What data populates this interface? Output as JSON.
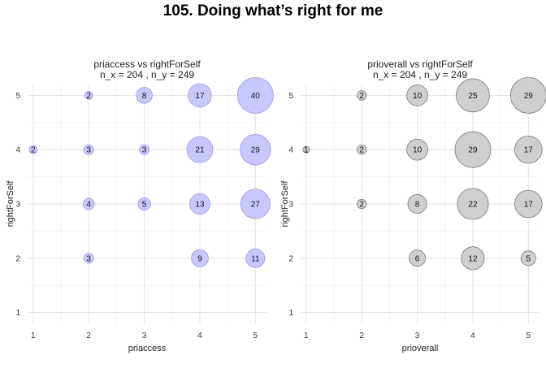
{
  "title": "105. Doing what’s right for me",
  "chart_data": [
    {
      "type": "scatter",
      "title": "priaccess vs rightForSelf",
      "subtitle": "n_x = 204 , n_y = 249",
      "xlabel": "priaccess",
      "ylabel": "rightForSelf",
      "xlim": [
        0.9,
        5.2
      ],
      "ylim": [
        0.8,
        5.2
      ],
      "xticks": [
        "1",
        "2",
        "3",
        "4",
        "5"
      ],
      "yticks": [
        "1",
        "2",
        "3",
        "4",
        "5"
      ],
      "grid": true,
      "fill": "#c8c8ff",
      "stroke": "#9a9ae6",
      "points": [
        {
          "x": 2,
          "y": 5,
          "n": 2
        },
        {
          "x": 3,
          "y": 5,
          "n": 8
        },
        {
          "x": 4,
          "y": 5,
          "n": 17
        },
        {
          "x": 5,
          "y": 5,
          "n": 40
        },
        {
          "x": 1,
          "y": 4,
          "n": 2
        },
        {
          "x": 2,
          "y": 4,
          "n": 3
        },
        {
          "x": 3,
          "y": 4,
          "n": 3
        },
        {
          "x": 4,
          "y": 4,
          "n": 21
        },
        {
          "x": 5,
          "y": 4,
          "n": 29
        },
        {
          "x": 2,
          "y": 3,
          "n": 4
        },
        {
          "x": 3,
          "y": 3,
          "n": 5
        },
        {
          "x": 4,
          "y": 3,
          "n": 13
        },
        {
          "x": 5,
          "y": 3,
          "n": 27
        },
        {
          "x": 2,
          "y": 2,
          "n": 3
        },
        {
          "x": 4,
          "y": 2,
          "n": 9
        },
        {
          "x": 5,
          "y": 2,
          "n": 11
        }
      ]
    },
    {
      "type": "scatter",
      "title": "prioverall vs rightForSelf",
      "subtitle": "n_x = 204 , n_y = 249",
      "xlabel": "prioverall",
      "ylabel": "rightForSelf",
      "xlim": [
        0.9,
        5.2
      ],
      "ylim": [
        0.8,
        5.2
      ],
      "xticks": [
        "1",
        "2",
        "3",
        "4",
        "5"
      ],
      "yticks": [
        "1",
        "2",
        "3",
        "4",
        "5"
      ],
      "grid": true,
      "fill": "#cfcfcf",
      "stroke": "#7a7a7a",
      "points": [
        {
          "x": 2,
          "y": 5,
          "n": 2
        },
        {
          "x": 3,
          "y": 5,
          "n": 10
        },
        {
          "x": 4,
          "y": 5,
          "n": 25
        },
        {
          "x": 5,
          "y": 5,
          "n": 29
        },
        {
          "x": 1,
          "y": 4,
          "n": 1
        },
        {
          "x": 2,
          "y": 4,
          "n": 2
        },
        {
          "x": 3,
          "y": 4,
          "n": 10
        },
        {
          "x": 4,
          "y": 4,
          "n": 29
        },
        {
          "x": 5,
          "y": 4,
          "n": 17
        },
        {
          "x": 2,
          "y": 3,
          "n": 2
        },
        {
          "x": 3,
          "y": 3,
          "n": 8
        },
        {
          "x": 4,
          "y": 3,
          "n": 22
        },
        {
          "x": 5,
          "y": 3,
          "n": 17
        },
        {
          "x": 3,
          "y": 2,
          "n": 6
        },
        {
          "x": 4,
          "y": 2,
          "n": 12
        },
        {
          "x": 5,
          "y": 2,
          "n": 5
        }
      ]
    }
  ]
}
